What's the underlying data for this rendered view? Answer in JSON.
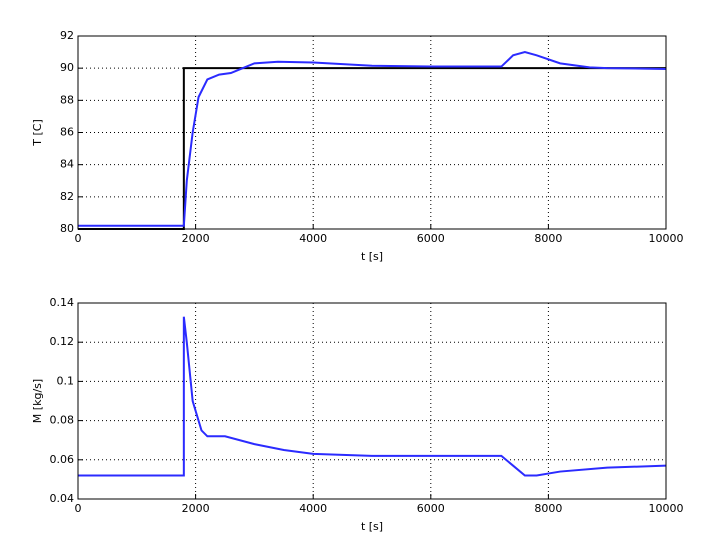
{
  "chart_data": [
    {
      "type": "line",
      "xlabel": "t [s]",
      "ylabel": "T [C]",
      "xlim": [
        0,
        10000
      ],
      "xticks": [
        0,
        2000,
        4000,
        6000,
        8000,
        10000
      ],
      "ylim": [
        80,
        92
      ],
      "yticks": [
        80,
        82,
        84,
        86,
        88,
        90,
        92
      ],
      "grid": true,
      "series": [
        {
          "color": "#000000",
          "x": [
            0,
            1800,
            1800,
            10000
          ],
          "values": [
            80,
            80,
            90,
            90
          ]
        },
        {
          "color": "#2b2bff",
          "x": [
            0,
            1800,
            1850,
            1950,
            2050,
            2200,
            2400,
            2600,
            2800,
            3000,
            3400,
            4000,
            5000,
            6000,
            7200,
            7400,
            7600,
            7800,
            8200,
            8700,
            9000,
            10000
          ],
          "values": [
            80.2,
            80.2,
            83,
            86,
            88.2,
            89.3,
            89.6,
            89.7,
            90,
            90.3,
            90.4,
            90.35,
            90.15,
            90.1,
            90.1,
            90.8,
            91.0,
            90.8,
            90.3,
            90.05,
            90.0,
            89.95
          ]
        }
      ]
    },
    {
      "type": "line",
      "xlabel": "t [s]",
      "ylabel": "M [kg/s]",
      "xlim": [
        0,
        10000
      ],
      "xticks": [
        0,
        2000,
        4000,
        6000,
        8000,
        10000
      ],
      "ylim": [
        0.04,
        0.14
      ],
      "yticks": [
        0.04,
        0.06,
        0.08,
        0.1,
        0.12,
        0.14
      ],
      "grid": true,
      "series": [
        {
          "color": "#2b2bff",
          "x": [
            0,
            1800,
            1800,
            1850,
            1950,
            2100,
            2200,
            2500,
            3000,
            3500,
            4000,
            5000,
            6000,
            7200,
            7400,
            7600,
            7800,
            8200,
            9000,
            10000
          ],
          "values": [
            0.052,
            0.052,
            0.133,
            0.12,
            0.09,
            0.075,
            0.072,
            0.072,
            0.068,
            0.065,
            0.063,
            0.062,
            0.062,
            0.062,
            0.057,
            0.052,
            0.052,
            0.054,
            0.056,
            0.057
          ]
        }
      ]
    }
  ]
}
